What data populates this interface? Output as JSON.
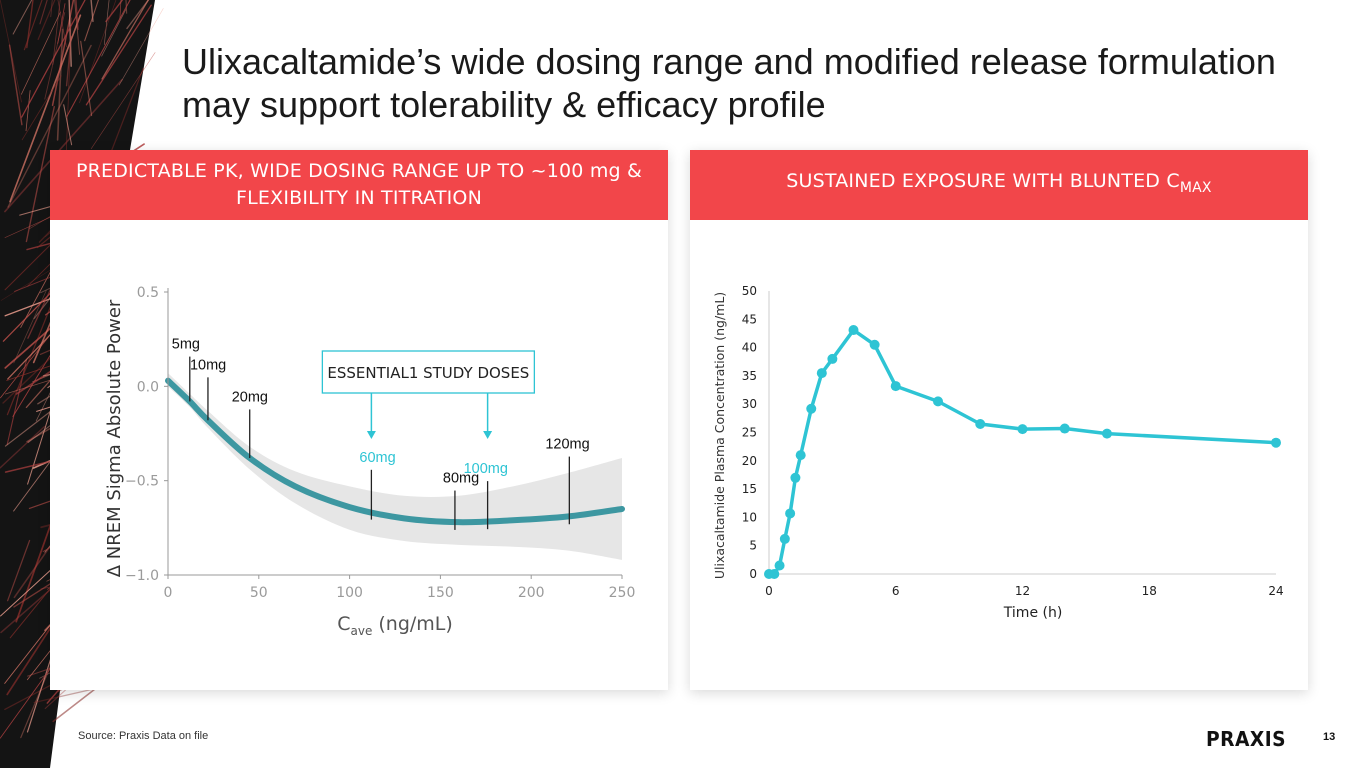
{
  "slide": {
    "title_line1": "Ulixacaltamide’s wide dosing range and modified release formulation",
    "title_line2": "may support tolerability & efficacy profile",
    "source": "Source: Praxis Data on file",
    "logo_text": "PRAXIS",
    "page_number": "13"
  },
  "colors": {
    "accent": "#f2464a",
    "teal": "#3d97a1",
    "cyan": "#2ec4d4",
    "band": "#e6e6e6"
  },
  "left_panel": {
    "header_line1": "PREDICTABLE PK, WIDE DOSING RANGE UP TO ~100 mg &",
    "header_line2": "FLEXIBILITY IN TITRATION"
  },
  "right_panel": {
    "header_main": "SUSTAINED EXPOSURE WITH BLUNTED C",
    "header_sub": "MAX"
  },
  "chart_data": [
    {
      "type": "line",
      "title": "",
      "xlabel": "C",
      "xlabel_sub": "ave",
      "xlabel_suffix": " (ng/mL)",
      "ylabel": "Δ NREM Sigma Absolute Power",
      "xlim": [
        0,
        250
      ],
      "ylim": [
        -1.0,
        0.5
      ],
      "x_ticks": [
        0,
        50,
        100,
        150,
        200,
        250
      ],
      "y_ticks": [
        0.5,
        0.0,
        -0.5,
        -1.0
      ],
      "y_tick_labels": [
        "0.5",
        "0.0",
        "−0.5",
        "−1.0"
      ],
      "series": [
        {
          "name": "fit",
          "x": [
            0,
            12,
            22,
            45,
            70,
            100,
            130,
            160,
            190,
            220,
            250
          ],
          "y": [
            0.03,
            -0.08,
            -0.18,
            -0.38,
            -0.53,
            -0.64,
            -0.7,
            -0.72,
            -0.71,
            -0.69,
            -0.65
          ],
          "lower": [
            0.0,
            -0.11,
            -0.22,
            -0.44,
            -0.62,
            -0.76,
            -0.82,
            -0.84,
            -0.85,
            -0.87,
            -0.92
          ],
          "upper": [
            0.07,
            -0.04,
            -0.13,
            -0.32,
            -0.45,
            -0.53,
            -0.58,
            -0.58,
            -0.53,
            -0.46,
            -0.38
          ]
        }
      ],
      "dose_markers": [
        {
          "label": "5mg",
          "x": 12,
          "label_y": 0.2,
          "highlight": false
        },
        {
          "label": "10mg",
          "x": 22,
          "label_y": 0.09,
          "highlight": false
        },
        {
          "label": "20mg",
          "x": 45,
          "label_y": -0.08,
          "highlight": false
        },
        {
          "label": "60mg",
          "x": 112,
          "label_y": -0.4,
          "highlight": true
        },
        {
          "label": "80mg",
          "x": 158,
          "label_y": -0.51,
          "highlight": false
        },
        {
          "label": "100mg",
          "x": 176,
          "label_y": -0.46,
          "highlight": true
        },
        {
          "label": "120mg",
          "x": 221,
          "label_y": -0.33,
          "highlight": false
        }
      ],
      "annotation": "ESSENTIAL1 STUDY DOSES"
    },
    {
      "type": "line",
      "title": "",
      "xlabel": "Time (h)",
      "ylabel": "Ulixacaltamide Plasma Concentration (ng/mL)",
      "xlim": [
        0,
        24
      ],
      "ylim": [
        0,
        50
      ],
      "x_ticks": [
        0,
        6,
        12,
        18,
        24
      ],
      "y_ticks": [
        0,
        5,
        10,
        15,
        20,
        25,
        30,
        35,
        40,
        45,
        50
      ],
      "grid": false,
      "series": [
        {
          "name": "Ulixacaltamide",
          "x": [
            0,
            0.25,
            0.5,
            0.75,
            1,
            1.25,
            1.5,
            2,
            2.5,
            3,
            4,
            5,
            6,
            8,
            10,
            12,
            14,
            16,
            24
          ],
          "y": [
            0,
            0,
            1.5,
            6.2,
            10.7,
            17,
            21,
            29.2,
            35.5,
            38,
            43.1,
            40.5,
            33.2,
            30.5,
            26.5,
            25.6,
            25.7,
            24.8,
            23.2
          ]
        }
      ]
    }
  ]
}
